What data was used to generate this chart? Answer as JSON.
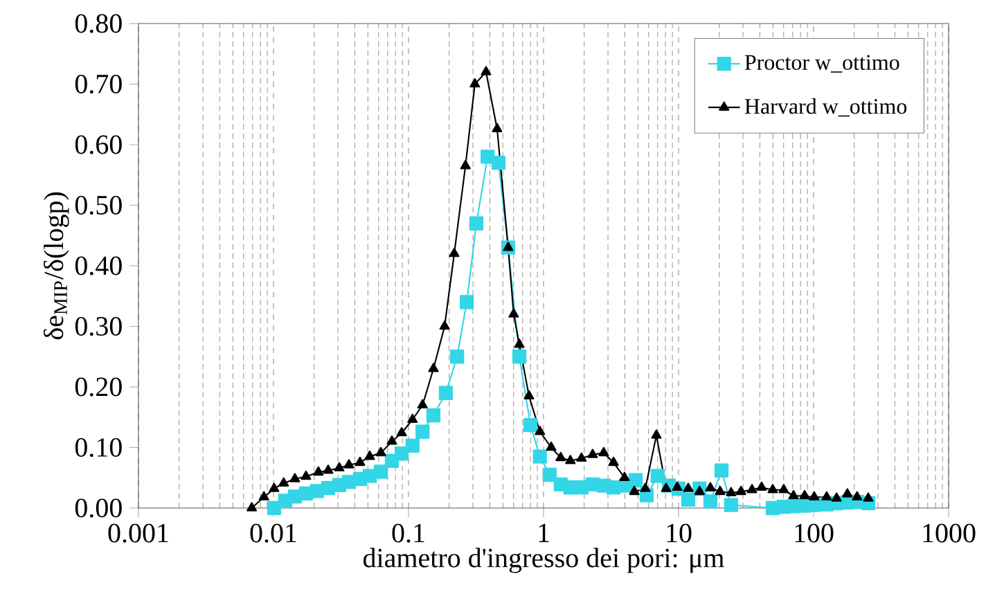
{
  "chart_data": {
    "type": "line",
    "xlabel": "diametro d'ingresso dei pori: μm",
    "ylabel": "δe$_{MIP}$/δ(logp)",
    "log": "x",
    "grid": "x",
    "legend": "top right",
    "xlim": [
      0.001,
      1000
    ],
    "xticks": [
      0.001,
      0.01,
      0.1,
      1,
      10,
      100,
      1000
    ],
    "ylim": [
      0,
      0.8
    ],
    "yticks": [
      {
        "value": 0,
        "label": "0.00"
      },
      {
        "value": 0.1,
        "label": "0.10"
      },
      {
        "value": 0.2,
        "label": "0.20"
      },
      {
        "value": 0.3,
        "label": "0.30"
      },
      {
        "value": 0.4,
        "label": "0.40"
      },
      {
        "value": 0.5,
        "label": "0.50"
      },
      {
        "value": 0.6,
        "label": "0.60"
      },
      {
        "value": 0.7,
        "label": "0.70"
      },
      {
        "value": 0.8,
        "label": "0.80"
      }
    ],
    "series": [
      {
        "name": "Proctor w_ottimo",
        "color": "#33d6e6",
        "marker": "square",
        "line_style": "solid",
        "x": [
          0.0101,
          0.0122,
          0.0144,
          0.0174,
          0.021,
          0.0254,
          0.0307,
          0.0362,
          0.0437,
          0.0516,
          0.0624,
          0.0753,
          0.089,
          0.107,
          0.127,
          0.153,
          0.189,
          0.229,
          0.27,
          0.318,
          0.385,
          0.464,
          0.547,
          0.662,
          0.8,
          0.94,
          1.11,
          1.34,
          1.58,
          1.91,
          2.31,
          2.79,
          3.3,
          4.07,
          4.81,
          5.8,
          7.0,
          8.47,
          10,
          11.8,
          14.3,
          17.2,
          20.8,
          24.5,
          49.8,
          60.1,
          71,
          85.8,
          101,
          125,
          148,
          178,
          210,
          254
        ],
        "values": [
          0.0,
          0.012,
          0.019,
          0.024,
          0.028,
          0.033,
          0.038,
          0.043,
          0.048,
          0.053,
          0.06,
          0.078,
          0.09,
          0.103,
          0.126,
          0.153,
          0.19,
          0.25,
          0.34,
          0.47,
          0.58,
          0.57,
          0.43,
          0.25,
          0.137,
          0.085,
          0.055,
          0.039,
          0.034,
          0.034,
          0.039,
          0.037,
          0.034,
          0.037,
          0.046,
          0.021,
          0.053,
          0.037,
          0.032,
          0.014,
          0.032,
          0.011,
          0.062,
          0.005,
          0.0,
          0.002,
          0.003,
          0.004,
          0.005,
          0.006,
          0.008,
          0.009,
          0.01,
          0.008
        ]
      },
      {
        "name": "Harvard w_ottimo",
        "color": "#000000",
        "marker": "triangle",
        "line_style": "solid",
        "x": [
          0.0069,
          0.0085,
          0.0101,
          0.0119,
          0.0144,
          0.0174,
          0.0215,
          0.0254,
          0.0307,
          0.0362,
          0.0437,
          0.0516,
          0.0624,
          0.0753,
          0.089,
          0.107,
          0.127,
          0.153,
          0.185,
          0.218,
          0.264,
          0.31,
          0.375,
          0.453,
          0.547,
          0.601,
          0.662,
          0.78,
          0.94,
          1.14,
          1.34,
          1.58,
          1.91,
          2.31,
          2.79,
          3.3,
          3.98,
          4.7,
          5.67,
          6.85,
          8.09,
          9.77,
          11.8,
          14.3,
          17.2,
          20.3,
          24.5,
          29,
          35,
          41.2,
          49.8,
          60.1,
          71,
          85.8,
          101,
          125,
          148,
          178,
          210,
          254
        ],
        "values": [
          0.0,
          0.018,
          0.032,
          0.041,
          0.048,
          0.052,
          0.059,
          0.062,
          0.066,
          0.071,
          0.075,
          0.085,
          0.091,
          0.11,
          0.124,
          0.146,
          0.17,
          0.23,
          0.3,
          0.42,
          0.565,
          0.7,
          0.72,
          0.626,
          0.43,
          0.32,
          0.27,
          0.185,
          0.126,
          0.1,
          0.083,
          0.078,
          0.082,
          0.088,
          0.091,
          0.075,
          0.05,
          0.027,
          0.032,
          0.12,
          0.032,
          0.034,
          0.032,
          0.027,
          0.033,
          0.027,
          0.025,
          0.027,
          0.03,
          0.034,
          0.03,
          0.03,
          0.02,
          0.02,
          0.018,
          0.018,
          0.016,
          0.023,
          0.018,
          0.016
        ]
      }
    ]
  }
}
